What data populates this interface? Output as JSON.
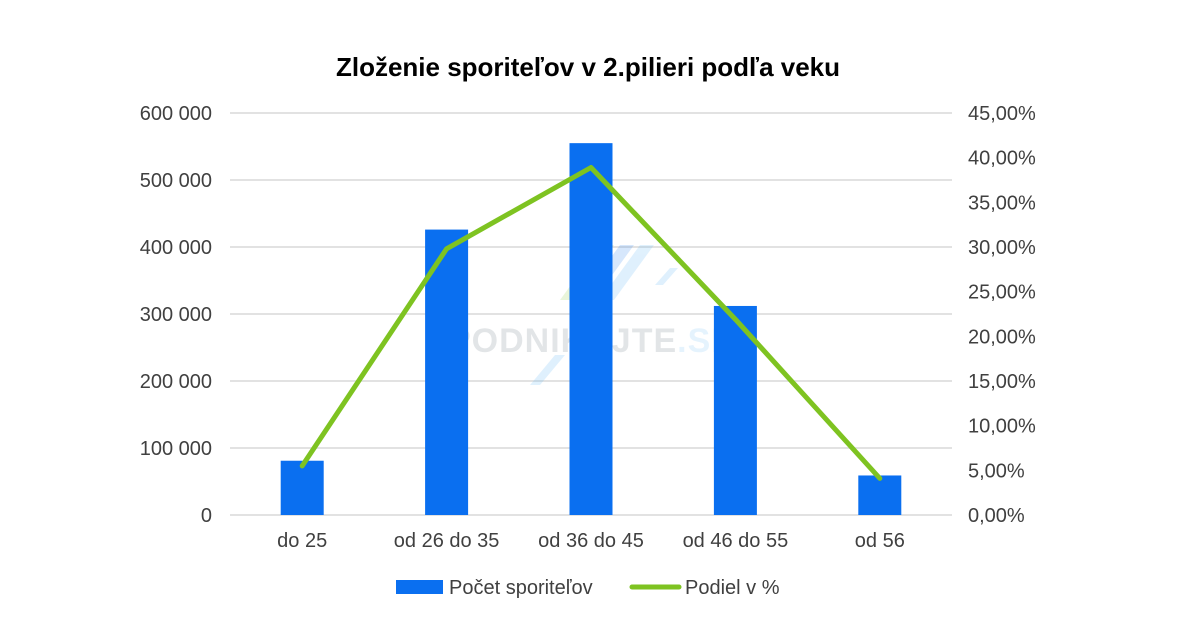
{
  "chart_data": {
    "type": "bar",
    "title": "Zloženie sporiteľov v 2.pilieri podľa veku",
    "categories": [
      "do 25",
      "od 26 do 35",
      "od 36 do 45",
      "od 46 do 55",
      "od 56"
    ],
    "series": [
      {
        "name": "Počet sporiteľov",
        "type": "bar",
        "axis": "left",
        "color": "#0a6ff0",
        "values": [
          81000,
          426000,
          555000,
          312000,
          59000
        ]
      },
      {
        "name": "Podiel v %",
        "type": "line",
        "axis": "right",
        "color": "#7ec321",
        "values": [
          5.5,
          29.8,
          38.9,
          21.9,
          4.1
        ]
      }
    ],
    "y_left": {
      "ylim": [
        0,
        600000
      ],
      "ticks": [
        "0",
        "100 000",
        "200 000",
        "300 000",
        "400 000",
        "500 000",
        "600 000"
      ]
    },
    "y_right": {
      "ylim": [
        0,
        45
      ],
      "ticks": [
        "0,00%",
        "5,00%",
        "10,00%",
        "15,00%",
        "20,00%",
        "25,00%",
        "30,00%",
        "35,00%",
        "40,00%",
        "45,00%"
      ]
    },
    "grid": true,
    "legend_position": "bottom",
    "gridline_color": "#d9d9d9"
  },
  "watermark": {
    "text_main": "PODNIKAJTE",
    "text_suffix": ".SK",
    "icon": "podnikajte-logo-icon"
  }
}
